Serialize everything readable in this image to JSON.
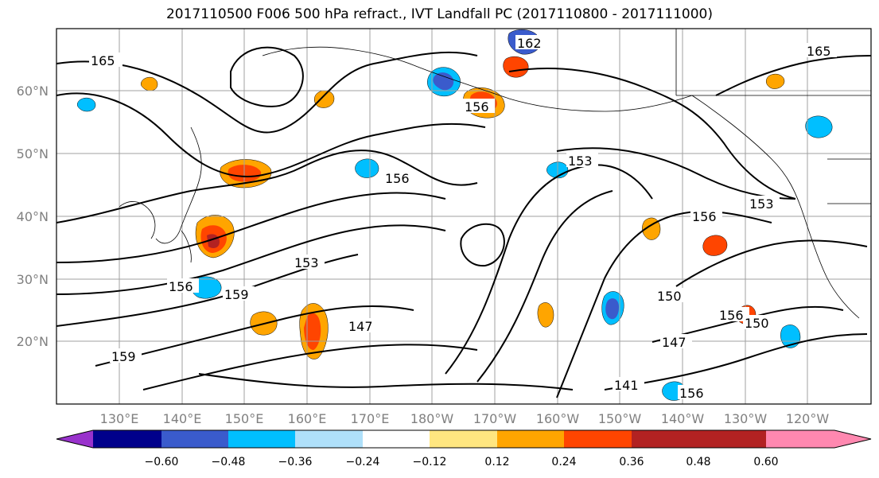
{
  "title": "2017110500 F006 500 hPa refract., IVT Landfall PC (2017110800 - 2017111000)",
  "latitude_labels": [
    "60°N",
    "50°N",
    "40°N",
    "30°N",
    "20°N"
  ],
  "longitude_labels": [
    "130°E",
    "140°E",
    "150°E",
    "160°E",
    "170°E",
    "180°W",
    "170°W",
    "160°W",
    "150°W",
    "140°W",
    "130°W",
    "120°W"
  ],
  "contour_labels": [
    "165",
    "162",
    "159",
    "156",
    "153",
    "150",
    "147",
    "141",
    "156",
    "153",
    "159",
    "156",
    "153",
    "150",
    "147"
  ],
  "colorbar": {
    "tick_labels": [
      "−0.60",
      "−0.48",
      "−0.36",
      "−0.24",
      "−0.12",
      "0.12",
      "0.24",
      "0.36",
      "0.48",
      "0.60"
    ],
    "colors": [
      "#9932cc",
      "#00008b",
      "#3a5bcc",
      "#00bfff",
      "#afe0fa",
      "#ffffff",
      "#ffe680",
      "#ffa500",
      "#ff4500",
      "#b22222",
      "#ff88b0"
    ]
  }
}
